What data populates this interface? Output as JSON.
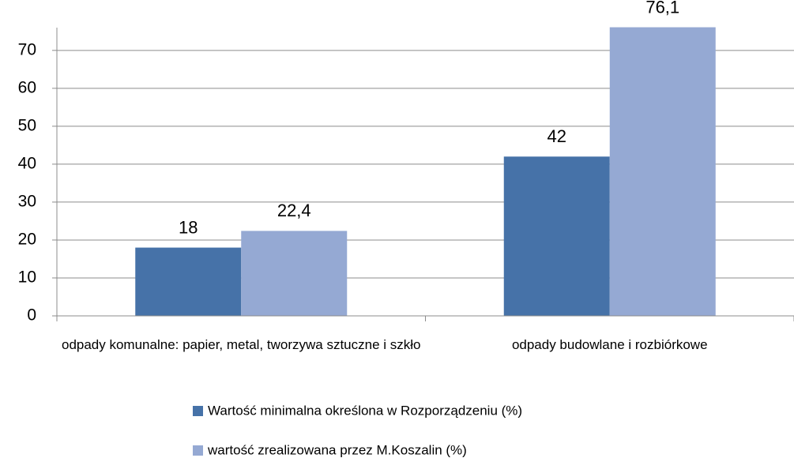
{
  "chart_data": {
    "type": "bar",
    "categories": [
      "odpady komunalne: papier, metal, tworzywa sztuczne i szkło",
      "odpady budowlane i rozbiórkowe"
    ],
    "series": [
      {
        "name": "Wartość minimalna określona w Rozporządzeniu (%)",
        "color": "#4672a8",
        "values": [
          18,
          42
        ],
        "value_labels": [
          "18",
          "42"
        ]
      },
      {
        "name": "wartość zrealizowana przez M.Koszalin (%)",
        "color": "#95a9d3",
        "values": [
          22.4,
          76.1
        ],
        "value_labels": [
          "22,4",
          "76,1"
        ]
      }
    ],
    "ylim": [
      0,
      76
    ],
    "yticks": [
      0,
      10,
      20,
      30,
      40,
      50,
      60,
      70
    ],
    "grid": true,
    "legend": "bottom"
  }
}
